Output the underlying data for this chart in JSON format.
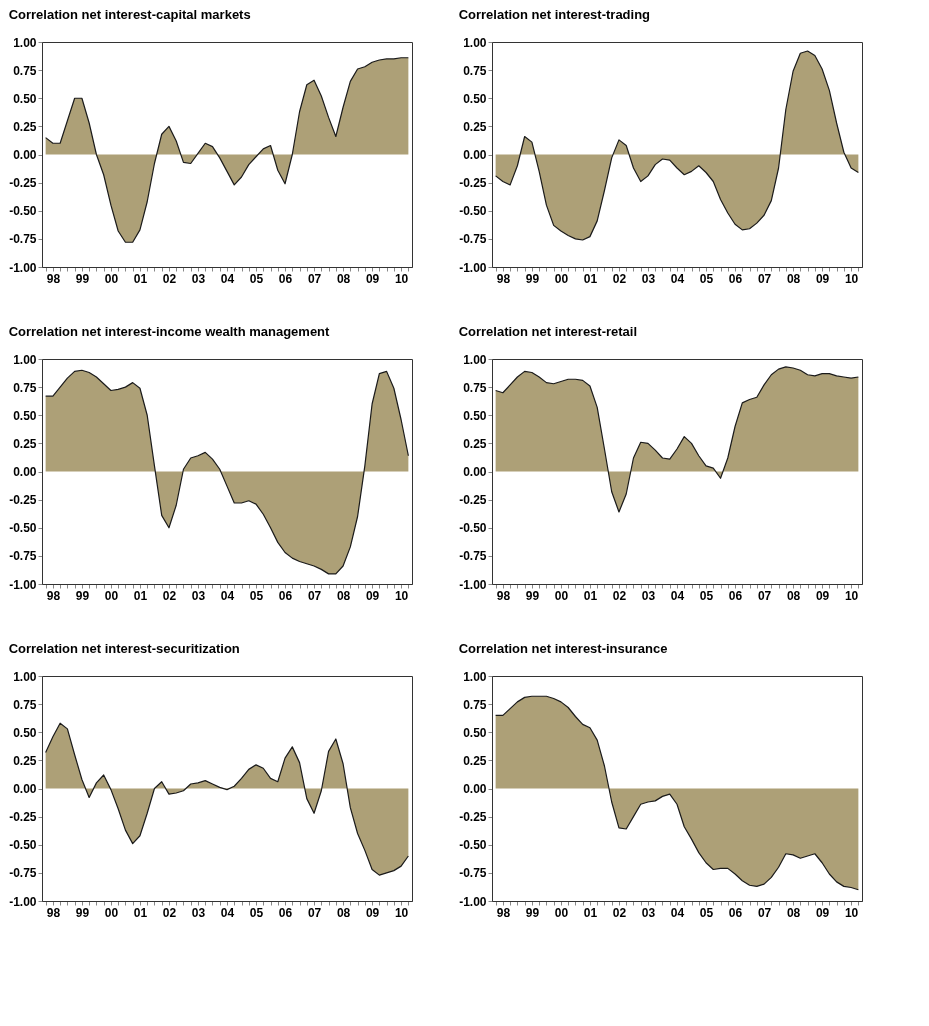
{
  "chart_data": [
    {
      "type": "area",
      "title": "Correlation net interest-capital markets",
      "color": "#ada077",
      "categories": [
        null,
        "98",
        null,
        null,
        null,
        "99",
        null,
        null,
        null,
        "00",
        null,
        null,
        null,
        "01",
        null,
        null,
        null,
        "02",
        null,
        null,
        null,
        "03",
        null,
        null,
        null,
        "04",
        null,
        null,
        null,
        "05",
        null,
        null,
        null,
        "06",
        null,
        null,
        null,
        "07",
        null,
        null,
        null,
        "08",
        null,
        null,
        null,
        "09",
        null,
        null,
        null,
        "10",
        null
      ],
      "values": [
        0.15,
        0.1,
        0.1,
        0.3,
        0.5,
        0.5,
        0.28,
        0.0,
        -0.18,
        -0.45,
        -0.68,
        -0.78,
        -0.78,
        -0.67,
        -0.42,
        -0.08,
        0.18,
        0.25,
        0.12,
        -0.07,
        -0.08,
        0.01,
        0.1,
        0.07,
        -0.03,
        -0.15,
        -0.27,
        -0.2,
        -0.09,
        -0.02,
        0.05,
        0.08,
        -0.14,
        -0.26,
        0.0,
        0.38,
        0.62,
        0.66,
        0.52,
        0.33,
        0.16,
        0.42,
        0.65,
        0.76,
        0.78,
        0.82,
        0.84,
        0.85,
        0.85,
        0.86,
        0.86
      ],
      "ylim": [
        -1,
        1
      ],
      "yticks": [
        {
          "value": 1,
          "label": "1.00"
        },
        {
          "value": 0.75,
          "label": "0.75"
        },
        {
          "value": 0.5,
          "label": "0.50"
        },
        {
          "value": 0.25,
          "label": "0.25"
        },
        {
          "value": 0,
          "label": "0.00"
        },
        {
          "value": -0.25,
          "label": "-0.25"
        },
        {
          "value": -0.5,
          "label": "-0.50"
        },
        {
          "value": -0.75,
          "label": "-0.75"
        },
        {
          "value": -1,
          "label": "-1.00"
        }
      ]
    },
    {
      "type": "area",
      "title": "Correlation net interest-trading",
      "color": "#ada077",
      "categories": [
        null,
        "98",
        null,
        null,
        null,
        "99",
        null,
        null,
        null,
        "00",
        null,
        null,
        null,
        "01",
        null,
        null,
        null,
        "02",
        null,
        null,
        null,
        "03",
        null,
        null,
        null,
        "04",
        null,
        null,
        null,
        "05",
        null,
        null,
        null,
        "06",
        null,
        null,
        null,
        "07",
        null,
        null,
        null,
        "08",
        null,
        null,
        null,
        "09",
        null,
        null,
        null,
        "10",
        null
      ],
      "values": [
        -0.19,
        -0.24,
        -0.27,
        -0.1,
        0.16,
        0.11,
        -0.15,
        -0.45,
        -0.63,
        -0.68,
        -0.72,
        -0.75,
        -0.76,
        -0.73,
        -0.59,
        -0.32,
        -0.03,
        0.13,
        0.08,
        -0.12,
        -0.24,
        -0.19,
        -0.09,
        -0.04,
        -0.05,
        -0.12,
        -0.18,
        -0.15,
        -0.1,
        -0.16,
        -0.24,
        -0.4,
        -0.52,
        -0.62,
        -0.67,
        -0.66,
        -0.61,
        -0.54,
        -0.41,
        -0.12,
        0.4,
        0.74,
        0.9,
        0.92,
        0.88,
        0.76,
        0.57,
        0.28,
        0.02,
        -0.12,
        -0.16
      ],
      "ylim": [
        -1,
        1
      ],
      "yticks": [
        {
          "value": 1,
          "label": "1.00"
        },
        {
          "value": 0.75,
          "label": "0.75"
        },
        {
          "value": 0.5,
          "label": "0.50"
        },
        {
          "value": 0.25,
          "label": "0.25"
        },
        {
          "value": 0,
          "label": "0.00"
        },
        {
          "value": -0.25,
          "label": "-0.25"
        },
        {
          "value": -0.5,
          "label": "-0.50"
        },
        {
          "value": -0.75,
          "label": "-0.75"
        },
        {
          "value": -1,
          "label": "-1.00"
        }
      ]
    },
    {
      "type": "area",
      "title": "Correlation net interest-income wealth management",
      "color": "#ada077",
      "categories": [
        null,
        "98",
        null,
        null,
        null,
        "99",
        null,
        null,
        null,
        "00",
        null,
        null,
        null,
        "01",
        null,
        null,
        null,
        "02",
        null,
        null,
        null,
        "03",
        null,
        null,
        null,
        "04",
        null,
        null,
        null,
        "05",
        null,
        null,
        null,
        "06",
        null,
        null,
        null,
        "07",
        null,
        null,
        null,
        "08",
        null,
        null,
        null,
        "09",
        null,
        null,
        null,
        "10",
        null
      ],
      "values": [
        0.67,
        0.67,
        0.75,
        0.83,
        0.89,
        0.9,
        0.88,
        0.84,
        0.78,
        0.72,
        0.73,
        0.75,
        0.79,
        0.74,
        0.5,
        0.05,
        -0.39,
        -0.5,
        -0.3,
        0.02,
        0.12,
        0.14,
        0.17,
        0.11,
        0.02,
        -0.13,
        -0.28,
        -0.28,
        -0.26,
        -0.29,
        -0.38,
        -0.5,
        -0.63,
        -0.72,
        -0.77,
        -0.8,
        -0.82,
        -0.84,
        -0.87,
        -0.91,
        -0.91,
        -0.84,
        -0.67,
        -0.4,
        0.05,
        0.6,
        0.87,
        0.89,
        0.74,
        0.46,
        0.14
      ],
      "ylim": [
        -1,
        1
      ],
      "yticks": [
        {
          "value": 1,
          "label": "1.00"
        },
        {
          "value": 0.75,
          "label": "0.75"
        },
        {
          "value": 0.5,
          "label": "0.50"
        },
        {
          "value": 0.25,
          "label": "0.25"
        },
        {
          "value": 0,
          "label": "0.00"
        },
        {
          "value": -0.25,
          "label": "-0.25"
        },
        {
          "value": -0.5,
          "label": "-0.50"
        },
        {
          "value": -0.75,
          "label": "-0.75"
        },
        {
          "value": -1,
          "label": "-1.00"
        }
      ]
    },
    {
      "type": "area",
      "title": "Correlation net interest-retail",
      "color": "#ada077",
      "categories": [
        null,
        "98",
        null,
        null,
        null,
        "99",
        null,
        null,
        null,
        "00",
        null,
        null,
        null,
        "01",
        null,
        null,
        null,
        "02",
        null,
        null,
        null,
        "03",
        null,
        null,
        null,
        "04",
        null,
        null,
        null,
        "05",
        null,
        null,
        null,
        "06",
        null,
        null,
        null,
        "07",
        null,
        null,
        null,
        "08",
        null,
        null,
        null,
        "09",
        null,
        null,
        null,
        "10",
        null
      ],
      "values": [
        0.72,
        0.7,
        0.77,
        0.84,
        0.89,
        0.88,
        0.84,
        0.79,
        0.78,
        0.8,
        0.82,
        0.82,
        0.81,
        0.76,
        0.57,
        0.2,
        -0.18,
        -0.36,
        -0.2,
        0.12,
        0.26,
        0.25,
        0.19,
        0.12,
        0.11,
        0.2,
        0.31,
        0.25,
        0.14,
        0.05,
        0.03,
        -0.06,
        0.12,
        0.4,
        0.61,
        0.64,
        0.66,
        0.77,
        0.86,
        0.91,
        0.93,
        0.92,
        0.9,
        0.86,
        0.85,
        0.87,
        0.87,
        0.85,
        0.84,
        0.83,
        0.84
      ],
      "ylim": [
        -1,
        1
      ],
      "yticks": [
        {
          "value": 1,
          "label": "1.00"
        },
        {
          "value": 0.75,
          "label": "0.75"
        },
        {
          "value": 0.5,
          "label": "0.50"
        },
        {
          "value": 0.25,
          "label": "0.25"
        },
        {
          "value": 0,
          "label": "0.00"
        },
        {
          "value": -0.25,
          "label": "-0.25"
        },
        {
          "value": -0.5,
          "label": "-0.50"
        },
        {
          "value": -0.75,
          "label": "-0.75"
        },
        {
          "value": -1,
          "label": "-1.00"
        }
      ]
    },
    {
      "type": "area",
      "title": "Correlation net interest-securitization",
      "color": "#ada077",
      "categories": [
        null,
        "98",
        null,
        null,
        null,
        "99",
        null,
        null,
        null,
        "00",
        null,
        null,
        null,
        "01",
        null,
        null,
        null,
        "02",
        null,
        null,
        null,
        "03",
        null,
        null,
        null,
        "04",
        null,
        null,
        null,
        "05",
        null,
        null,
        null,
        "06",
        null,
        null,
        null,
        "07",
        null,
        null,
        null,
        "08",
        null,
        null,
        null,
        "09",
        null,
        null,
        null,
        "10",
        null
      ],
      "values": [
        0.32,
        0.46,
        0.58,
        0.53,
        0.3,
        0.08,
        -0.08,
        0.05,
        0.12,
        -0.01,
        -0.18,
        -0.37,
        -0.49,
        -0.42,
        -0.22,
        0.0,
        0.06,
        -0.05,
        -0.04,
        -0.02,
        0.04,
        0.05,
        0.07,
        0.04,
        0.01,
        -0.01,
        0.02,
        0.09,
        0.17,
        0.21,
        0.18,
        0.09,
        0.06,
        0.27,
        0.37,
        0.23,
        -0.09,
        -0.22,
        -0.02,
        0.33,
        0.44,
        0.22,
        -0.17,
        -0.4,
        -0.55,
        -0.72,
        -0.77,
        -0.75,
        -0.73,
        -0.69,
        -0.6
      ],
      "ylim": [
        -1,
        1
      ],
      "yticks": [
        {
          "value": 1,
          "label": "1.00"
        },
        {
          "value": 0.75,
          "label": "0.75"
        },
        {
          "value": 0.5,
          "label": "0.50"
        },
        {
          "value": 0.25,
          "label": "0.25"
        },
        {
          "value": 0,
          "label": "0.00"
        },
        {
          "value": -0.25,
          "label": "-0.25"
        },
        {
          "value": -0.5,
          "label": "-0.50"
        },
        {
          "value": -0.75,
          "label": "-0.75"
        },
        {
          "value": -1,
          "label": "-1.00"
        }
      ]
    },
    {
      "type": "area",
      "title": "Correlation net interest-insurance",
      "color": "#ada077",
      "categories": [
        null,
        "98",
        null,
        null,
        null,
        "99",
        null,
        null,
        null,
        "00",
        null,
        null,
        null,
        "01",
        null,
        null,
        null,
        "02",
        null,
        null,
        null,
        "03",
        null,
        null,
        null,
        "04",
        null,
        null,
        null,
        "05",
        null,
        null,
        null,
        "06",
        null,
        null,
        null,
        "07",
        null,
        null,
        null,
        "08",
        null,
        null,
        null,
        "09",
        null,
        null,
        null,
        "10",
        null
      ],
      "values": [
        0.65,
        0.65,
        0.71,
        0.77,
        0.81,
        0.82,
        0.82,
        0.82,
        0.8,
        0.77,
        0.72,
        0.64,
        0.57,
        0.54,
        0.43,
        0.2,
        -0.12,
        -0.35,
        -0.36,
        -0.25,
        -0.14,
        -0.12,
        -0.11,
        -0.07,
        -0.05,
        -0.14,
        -0.34,
        -0.45,
        -0.57,
        -0.66,
        -0.72,
        -0.71,
        -0.71,
        -0.76,
        -0.82,
        -0.86,
        -0.87,
        -0.85,
        -0.79,
        -0.7,
        -0.58,
        -0.59,
        -0.62,
        -0.6,
        -0.58,
        -0.66,
        -0.76,
        -0.83,
        -0.87,
        -0.88,
        -0.9
      ],
      "ylim": [
        -1,
        1
      ],
      "yticks": [
        {
          "value": 1,
          "label": "1.00"
        },
        {
          "value": 0.75,
          "label": "0.75"
        },
        {
          "value": 0.5,
          "label": "0.50"
        },
        {
          "value": 0.25,
          "label": "0.25"
        },
        {
          "value": 0,
          "label": "0.00"
        },
        {
          "value": -0.25,
          "label": "-0.25"
        },
        {
          "value": -0.5,
          "label": "-0.50"
        },
        {
          "value": -0.75,
          "label": "-0.75"
        },
        {
          "value": -1,
          "label": "-1.00"
        }
      ]
    }
  ]
}
